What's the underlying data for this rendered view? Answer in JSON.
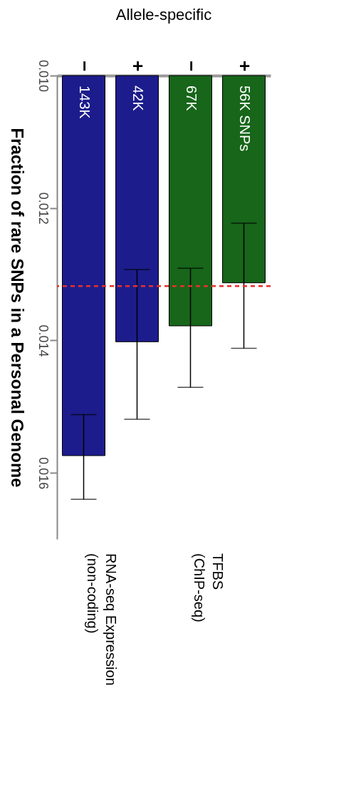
{
  "chart_data": {
    "type": "bar",
    "title": "Allele-specific",
    "ylabel": "Fraction of rare SNPs in a Personal Genome",
    "categories": [
      "−",
      "+",
      "−",
      "+"
    ],
    "values": [
      0.01574,
      0.01402,
      0.01378,
      0.01313
    ],
    "colors": [
      "#1c1c8c",
      "#1c1c8c",
      "#17661a",
      "#17661a"
    ],
    "errors": [
      [
        0.01512,
        0.0164
      ],
      [
        0.01293,
        0.01519
      ],
      [
        0.01291,
        0.01471
      ],
      [
        0.01223,
        0.01412
      ]
    ],
    "ylim": [
      0.017,
      0.01
    ],
    "yticks": [
      {
        "value": 0.01,
        "label": "0.010"
      },
      {
        "value": 0.012,
        "label": "0.012"
      },
      {
        "value": 0.014,
        "label": "0.014"
      },
      {
        "value": 0.016,
        "label": "0.016"
      }
    ],
    "ref_lines": [
      {
        "axis": "y",
        "value": 0.01318,
        "color": "#e8302a",
        "line_style": "dashed"
      }
    ],
    "annotations": [
      "143K",
      "42K",
      "67K",
      "56K SNPs",
      "RNA-seq Expression\n(non-coding)",
      "TFBS\n(ChIP-seq)"
    ],
    "grid": false
  }
}
